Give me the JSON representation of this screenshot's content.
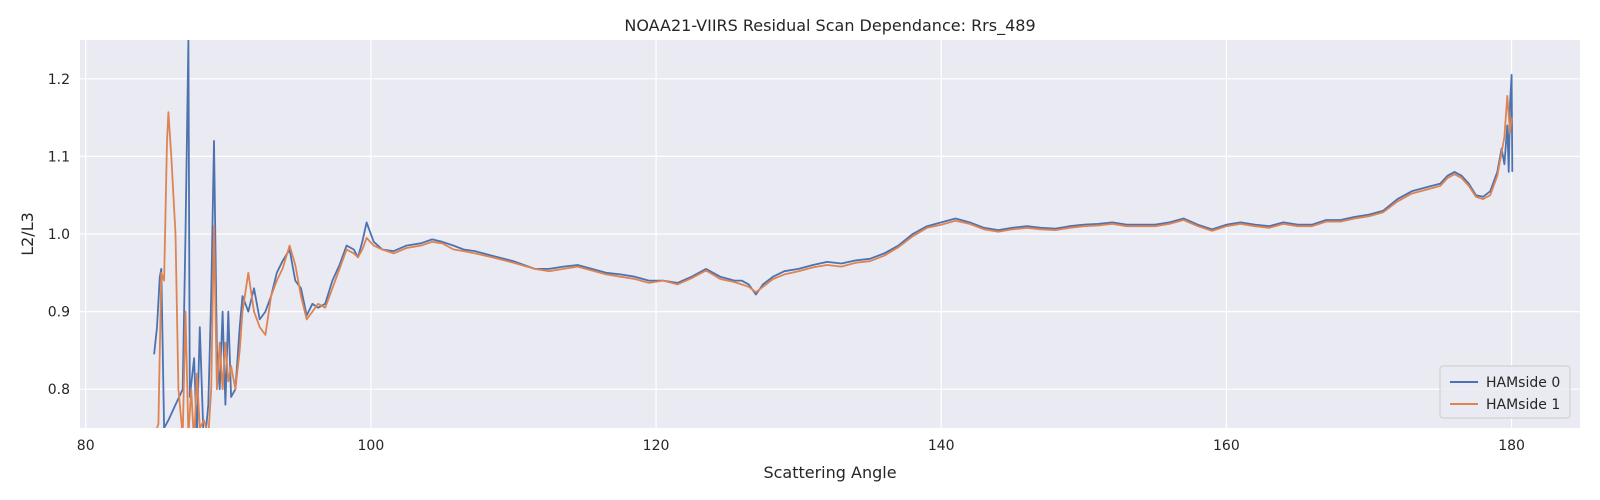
{
  "chart_data": {
    "type": "line",
    "title": "NOAA21-VIIRS Residual Scan Dependance: Rrs_489",
    "xlabel": "Scattering Angle",
    "ylabel": "L2/L3",
    "xlim": [
      79.6,
      184.8
    ],
    "ylim": [
      0.75,
      1.25
    ],
    "xticks": [
      80,
      100,
      120,
      140,
      160,
      180
    ],
    "yticks": [
      0.8,
      0.9,
      1.0,
      1.1,
      1.2
    ],
    "xtick_labels": [
      "80",
      "100",
      "120",
      "140",
      "160",
      "180"
    ],
    "ytick_labels": [
      "0.8",
      "0.9",
      "1.0",
      "1.1",
      "1.2"
    ],
    "grid": true,
    "legend_position": "lower-right",
    "colors": {
      "background": "#eaeaf2",
      "grid": "#ffffff",
      "series0": "#4c72b0",
      "series1": "#dd8452"
    },
    "series": [
      {
        "name": "HAMside 0",
        "color": "#4c72b0",
        "x": [
          84.8,
          85.0,
          85.2,
          85.3,
          85.5,
          85.8,
          86.3,
          86.8,
          87.0,
          87.2,
          87.3,
          87.6,
          87.8,
          88.0,
          88.3,
          88.6,
          88.8,
          89.0,
          89.2,
          89.4,
          89.6,
          89.8,
          90.0,
          90.2,
          90.5,
          90.8,
          91.0,
          91.4,
          91.8,
          92.2,
          92.6,
          93.0,
          93.4,
          93.8,
          94.3,
          94.7,
          95.1,
          95.5,
          95.9,
          96.3,
          96.8,
          97.3,
          97.8,
          98.3,
          98.8,
          99.1,
          99.4,
          99.7,
          100.2,
          100.8,
          101.6,
          102.5,
          103.5,
          104.3,
          105.0,
          105.8,
          106.5,
          107.3,
          108.5,
          110.0,
          111.5,
          112.5,
          113.5,
          114.5,
          115.5,
          116.5,
          117.5,
          118.5,
          119.5,
          120.5,
          121.5,
          122.5,
          123.5,
          124.5,
          125.5,
          126.0,
          126.5,
          127.0,
          127.5,
          128.2,
          129.0,
          130.0,
          131.0,
          132.0,
          133.0,
          134.0,
          135.0,
          136.0,
          137.0,
          138.0,
          139.0,
          140.0,
          141.0,
          142.0,
          143.0,
          144.0,
          145.0,
          146.0,
          147.0,
          148.0,
          149.0,
          150.0,
          151.0,
          152.0,
          153.0,
          154.0,
          155.0,
          156.0,
          157.0,
          158.0,
          159.0,
          160.0,
          161.0,
          162.0,
          163.0,
          164.0,
          165.0,
          166.0,
          167.0,
          168.0,
          169.0,
          170.0,
          171.0,
          172.0,
          173.0,
          174.0,
          175.0,
          175.5,
          176.0,
          176.5,
          177.0,
          177.5,
          178.0,
          178.5,
          179.0,
          179.3,
          179.5,
          179.7,
          179.8,
          179.9,
          180.0,
          180.05
        ],
        "values": [
          0.845,
          0.88,
          0.945,
          0.955,
          0.75,
          0.76,
          0.78,
          0.8,
          1.0,
          1.25,
          0.79,
          0.84,
          0.74,
          0.88,
          0.72,
          0.78,
          0.92,
          1.12,
          0.85,
          0.8,
          0.9,
          0.78,
          0.9,
          0.79,
          0.8,
          0.88,
          0.92,
          0.9,
          0.93,
          0.89,
          0.9,
          0.92,
          0.95,
          0.965,
          0.98,
          0.94,
          0.93,
          0.895,
          0.91,
          0.905,
          0.91,
          0.94,
          0.96,
          0.985,
          0.98,
          0.97,
          0.99,
          1.015,
          0.99,
          0.98,
          0.978,
          0.985,
          0.988,
          0.993,
          0.99,
          0.985,
          0.98,
          0.978,
          0.972,
          0.965,
          0.955,
          0.955,
          0.958,
          0.96,
          0.955,
          0.95,
          0.948,
          0.945,
          0.94,
          0.94,
          0.937,
          0.945,
          0.955,
          0.945,
          0.94,
          0.94,
          0.935,
          0.922,
          0.935,
          0.945,
          0.952,
          0.955,
          0.96,
          0.964,
          0.962,
          0.966,
          0.968,
          0.975,
          0.985,
          1.0,
          1.01,
          1.015,
          1.02,
          1.015,
          1.008,
          1.005,
          1.008,
          1.01,
          1.008,
          1.007,
          1.01,
          1.012,
          1.013,
          1.015,
          1.012,
          1.012,
          1.012,
          1.015,
          1.02,
          1.012,
          1.006,
          1.012,
          1.015,
          1.012,
          1.01,
          1.015,
          1.012,
          1.012,
          1.018,
          1.018,
          1.022,
          1.025,
          1.03,
          1.045,
          1.055,
          1.06,
          1.065,
          1.075,
          1.08,
          1.075,
          1.065,
          1.05,
          1.048,
          1.055,
          1.08,
          1.11,
          1.09,
          1.14,
          1.08,
          1.17,
          1.205,
          1.08
        ]
      },
      {
        "name": "HAMside 1",
        "color": "#dd8452",
        "x": [
          85.0,
          85.1,
          85.3,
          85.5,
          85.7,
          85.8,
          86.0,
          86.3,
          86.5,
          86.8,
          87.0,
          87.2,
          87.4,
          87.6,
          87.8,
          88.0,
          88.3,
          88.6,
          88.8,
          89.0,
          89.2,
          89.4,
          89.6,
          89.8,
          90.0,
          90.2,
          90.5,
          90.8,
          91.0,
          91.4,
          91.8,
          92.2,
          92.6,
          93.0,
          93.4,
          93.8,
          94.3,
          94.7,
          95.1,
          95.5,
          95.9,
          96.3,
          96.8,
          97.3,
          97.8,
          98.3,
          98.8,
          99.1,
          99.4,
          99.7,
          100.2,
          100.8,
          101.6,
          102.5,
          103.5,
          104.3,
          105.0,
          105.8,
          106.5,
          107.3,
          108.5,
          110.0,
          111.5,
          112.5,
          113.5,
          114.5,
          115.5,
          116.5,
          117.5,
          118.5,
          119.5,
          120.5,
          121.5,
          122.5,
          123.5,
          124.5,
          125.5,
          126.0,
          126.5,
          127.0,
          127.5,
          128.2,
          129.0,
          130.0,
          131.0,
          132.0,
          133.0,
          134.0,
          135.0,
          136.0,
          137.0,
          138.0,
          139.0,
          140.0,
          141.0,
          142.0,
          143.0,
          144.0,
          145.0,
          146.0,
          147.0,
          148.0,
          149.0,
          150.0,
          151.0,
          152.0,
          153.0,
          154.0,
          155.0,
          156.0,
          157.0,
          158.0,
          159.0,
          160.0,
          161.0,
          162.0,
          163.0,
          164.0,
          165.0,
          166.0,
          167.0,
          168.0,
          169.0,
          170.0,
          171.0,
          172.0,
          173.0,
          174.0,
          175.0,
          175.5,
          176.0,
          176.5,
          177.0,
          177.5,
          178.0,
          178.5,
          179.0,
          179.3,
          179.5,
          179.7,
          179.9,
          180.0
        ],
        "values": [
          0.75,
          0.755,
          0.95,
          0.94,
          1.12,
          1.157,
          1.1,
          1.0,
          0.8,
          0.74,
          0.9,
          0.74,
          0.8,
          0.73,
          0.82,
          0.75,
          0.76,
          0.74,
          0.8,
          1.01,
          0.8,
          0.86,
          0.8,
          0.86,
          0.81,
          0.83,
          0.8,
          0.85,
          0.9,
          0.95,
          0.9,
          0.88,
          0.87,
          0.92,
          0.94,
          0.955,
          0.985,
          0.96,
          0.92,
          0.89,
          0.9,
          0.91,
          0.905,
          0.93,
          0.955,
          0.98,
          0.975,
          0.97,
          0.98,
          0.995,
          0.985,
          0.98,
          0.975,
          0.982,
          0.985,
          0.99,
          0.988,
          0.98,
          0.978,
          0.975,
          0.97,
          0.963,
          0.955,
          0.952,
          0.955,
          0.958,
          0.953,
          0.948,
          0.945,
          0.942,
          0.937,
          0.94,
          0.935,
          0.943,
          0.953,
          0.942,
          0.938,
          0.935,
          0.932,
          0.925,
          0.932,
          0.942,
          0.948,
          0.952,
          0.957,
          0.96,
          0.958,
          0.963,
          0.965,
          0.972,
          0.983,
          0.997,
          1.008,
          1.012,
          1.017,
          1.013,
          1.006,
          1.003,
          1.006,
          1.008,
          1.006,
          1.005,
          1.008,
          1.01,
          1.011,
          1.013,
          1.01,
          1.01,
          1.01,
          1.013,
          1.018,
          1.01,
          1.004,
          1.01,
          1.013,
          1.01,
          1.008,
          1.013,
          1.01,
          1.01,
          1.016,
          1.016,
          1.02,
          1.023,
          1.028,
          1.042,
          1.052,
          1.057,
          1.062,
          1.072,
          1.077,
          1.072,
          1.062,
          1.048,
          1.045,
          1.05,
          1.075,
          1.105,
          1.125,
          1.178,
          1.13,
          1.15
        ]
      }
    ]
  }
}
